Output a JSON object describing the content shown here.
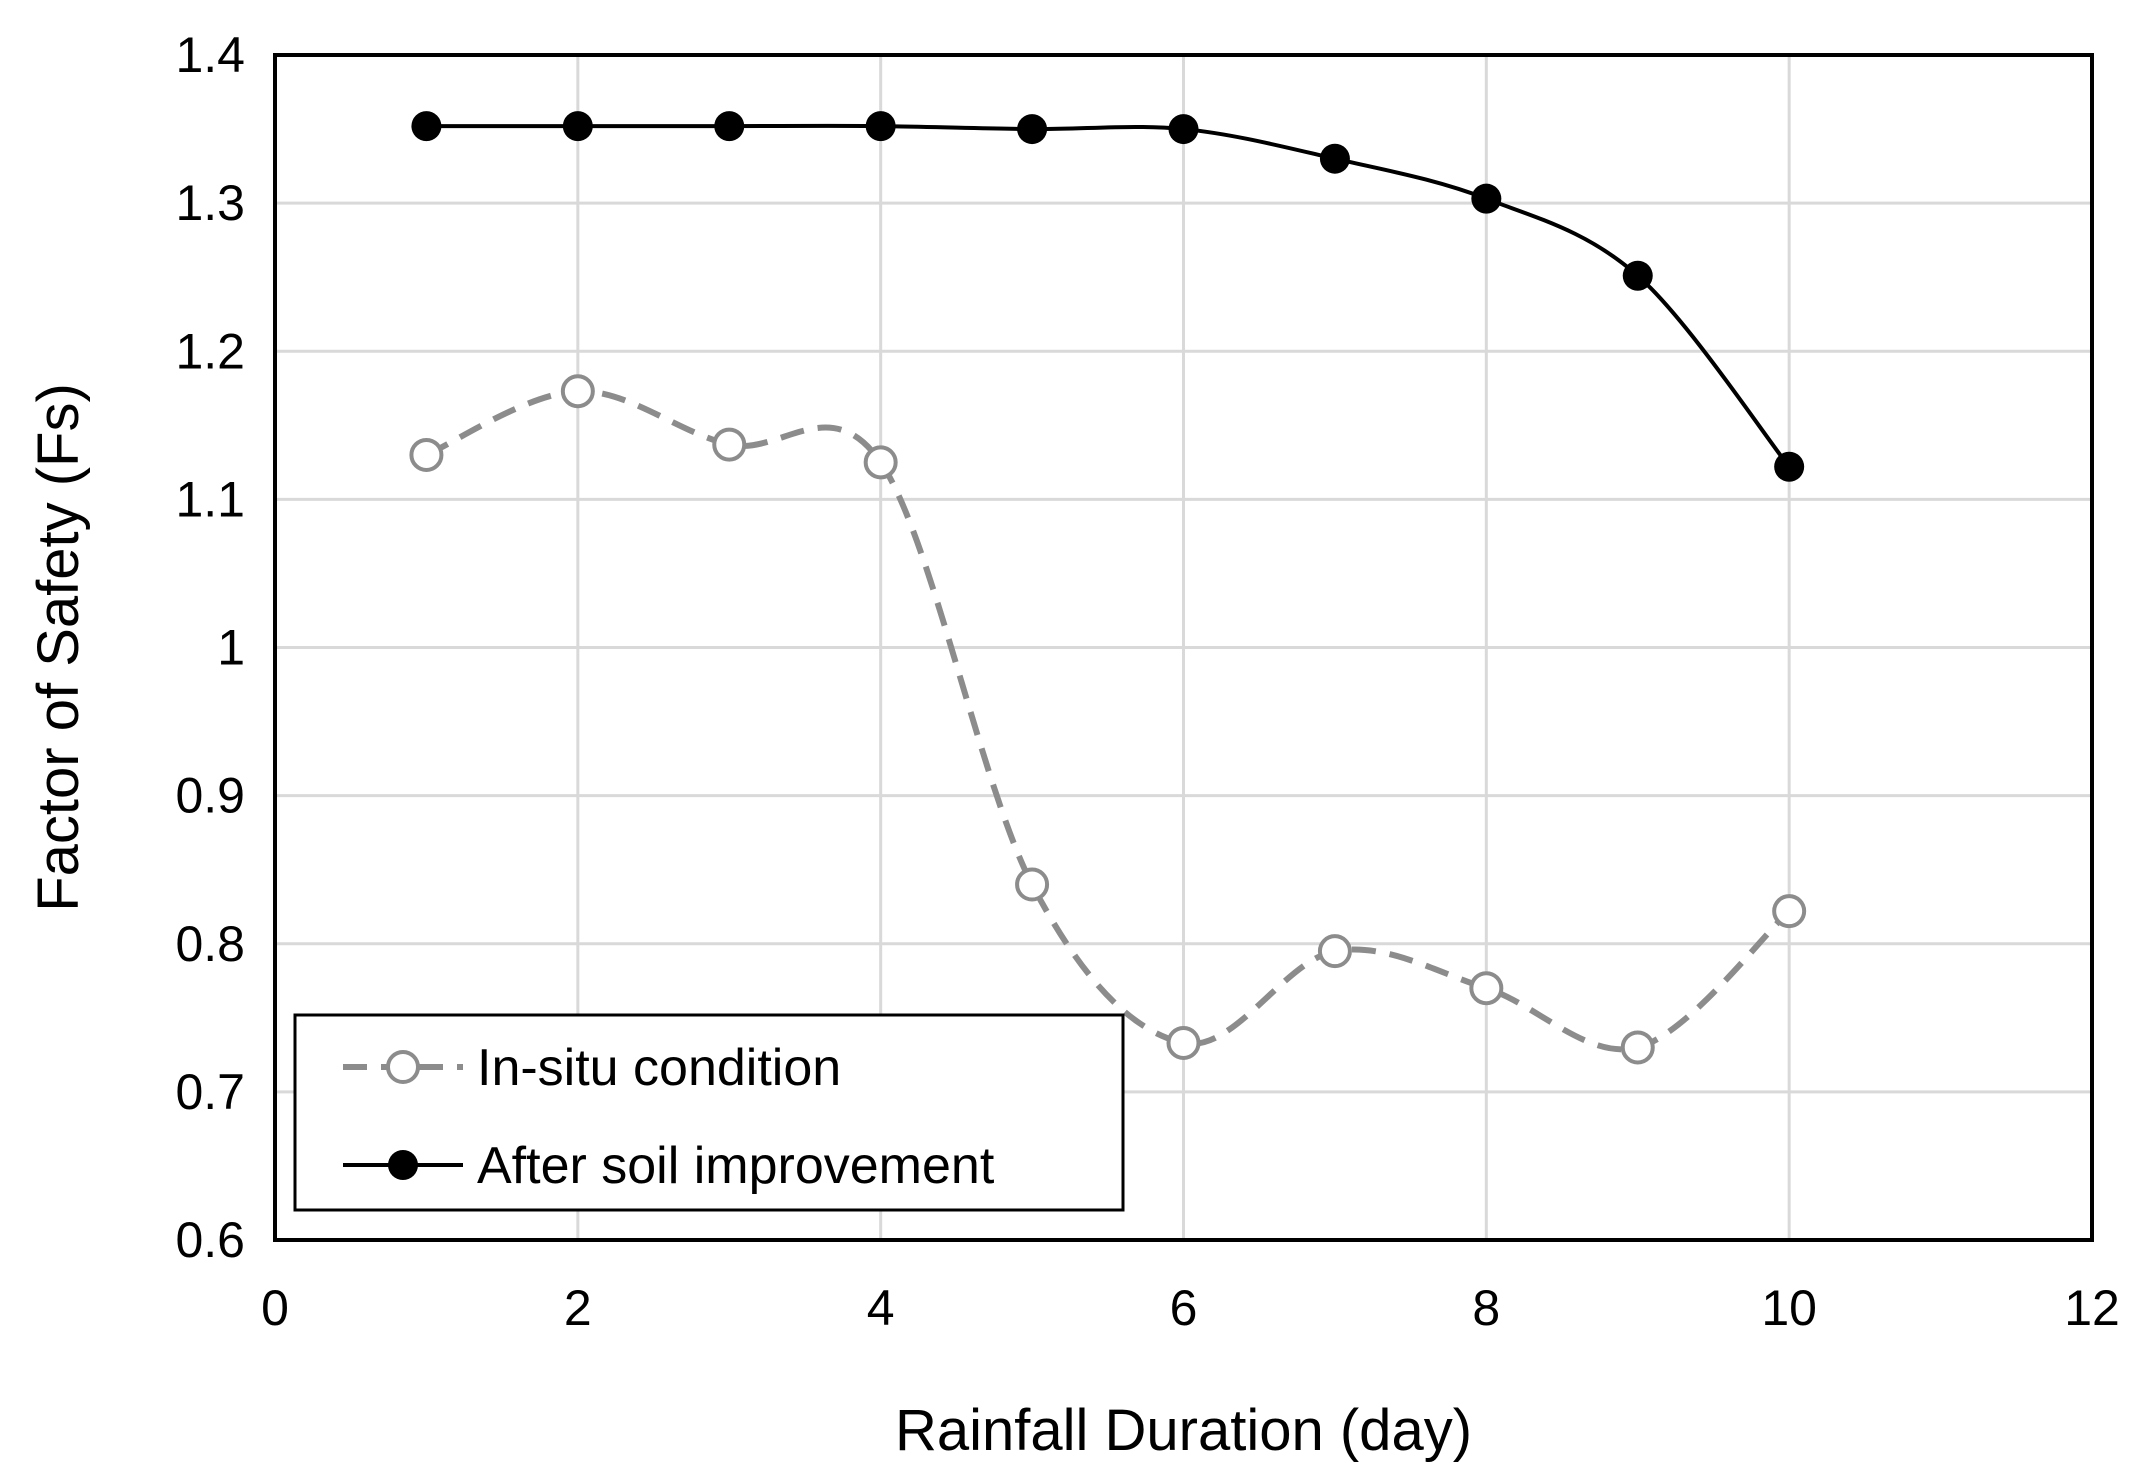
{
  "chart_data": {
    "type": "line",
    "title": "",
    "xlabel": "Rainfall Duration (day)",
    "ylabel": "Factor of Safety (Fs)",
    "xlim": [
      0,
      12
    ],
    "ylim": [
      0.6,
      1.4
    ],
    "x_ticks": [
      0,
      2,
      4,
      6,
      8,
      10,
      12
    ],
    "y_ticks": [
      0.6,
      0.7,
      0.8,
      0.9,
      1.0,
      1.1,
      1.2,
      1.3,
      1.4
    ],
    "x_tick_labels": [
      "0",
      "2",
      "4",
      "6",
      "8",
      "10",
      "12"
    ],
    "y_tick_labels": [
      "0.6",
      "0.7",
      "0.8",
      "0.9",
      "1",
      "1.1",
      "1.2",
      "1.3",
      "1.4"
    ],
    "grid": true,
    "legend_position": "bottom-left",
    "x": [
      1,
      2,
      3,
      4,
      5,
      6,
      7,
      8,
      9,
      10
    ],
    "series": [
      {
        "name": "In-situ condition",
        "values": [
          1.13,
          1.173,
          1.137,
          1.125,
          0.84,
          0.733,
          0.795,
          0.77,
          0.73,
          0.822
        ],
        "color": "#8c8c8c",
        "line_style": "dashed",
        "marker": "open-circle"
      },
      {
        "name": "After soil improvement",
        "values": [
          1.352,
          1.352,
          1.352,
          1.352,
          1.35,
          1.35,
          1.33,
          1.303,
          1.251,
          1.122
        ],
        "color": "#000000",
        "line_style": "solid",
        "marker": "filled-circle"
      }
    ]
  }
}
